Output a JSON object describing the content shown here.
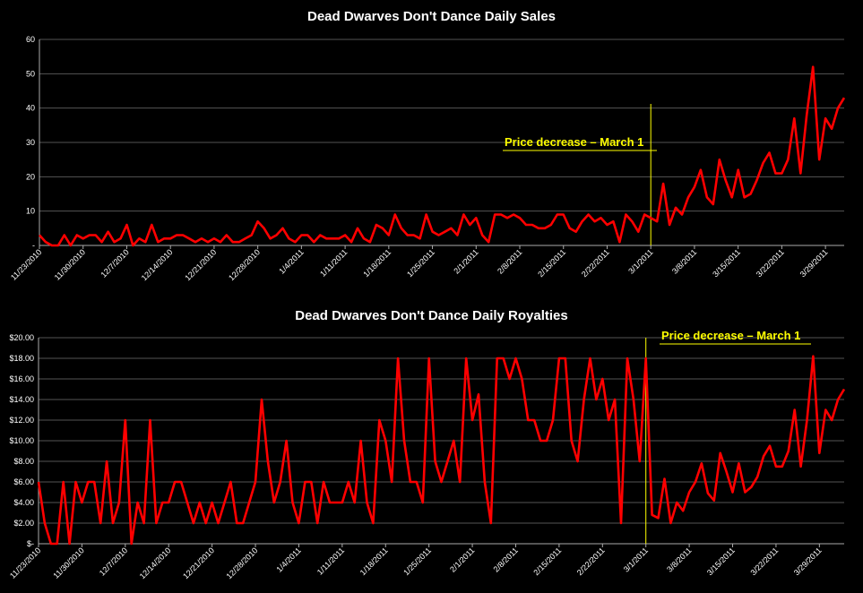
{
  "chart_data": [
    {
      "type": "line",
      "title": "Dead Dwarves Don't Dance Daily Sales",
      "x_tick_labels": [
        "11/23/2010",
        "11/30/2010",
        "12/7/2010",
        "12/14/2010",
        "12/21/2010",
        "12/28/2010",
        "1/4/2011",
        "1/11/2011",
        "1/18/2011",
        "1/25/2011",
        "2/1/2011",
        "2/8/2011",
        "2/15/2011",
        "2/22/2011",
        "3/1/2011",
        "3/8/2011",
        "3/15/2011",
        "3/22/2011",
        "3/29/2011"
      ],
      "y_tick_labels": [
        "-",
        "10",
        "20",
        "30",
        "40",
        "50",
        "60"
      ],
      "ylim": [
        0,
        60
      ],
      "grid": true,
      "series_color": "#ff0000",
      "annotation": {
        "text": "Price decrease – March 1",
        "x_index": 98,
        "color": "#ffff00"
      },
      "values": [
        3,
        1,
        0,
        0,
        3,
        0,
        3,
        2,
        3,
        3,
        1,
        4,
        1,
        2,
        6,
        0,
        2,
        1,
        6,
        1,
        2,
        2,
        3,
        3,
        2,
        1,
        2,
        1,
        2,
        1,
        3,
        1,
        1,
        2,
        3,
        7,
        5,
        2,
        3,
        5,
        2,
        1,
        3,
        3,
        1,
        3,
        2,
        2,
        2,
        3,
        1,
        5,
        2,
        1,
        6,
        5,
        3,
        9,
        5,
        3,
        3,
        2,
        9,
        4,
        3,
        4,
        5,
        3,
        9,
        6,
        8,
        3,
        1,
        9,
        9,
        8,
        9,
        8,
        6,
        6,
        5,
        5,
        6,
        9,
        9,
        5,
        4,
        7,
        9,
        7,
        8,
        6,
        7,
        1,
        9,
        7,
        4,
        9,
        8,
        7,
        18,
        6,
        11,
        9,
        14,
        17,
        22,
        14,
        12,
        25,
        19,
        14,
        22,
        14,
        15,
        19,
        24,
        27,
        21,
        21,
        25,
        37,
        21,
        38,
        52,
        25,
        37,
        34,
        40,
        43
      ]
    },
    {
      "type": "line",
      "title": "Dead Dwarves Don't Dance Daily Royalties",
      "x_tick_labels": [
        "11/23/2010",
        "11/30/2010",
        "12/7/2010",
        "12/14/2010",
        "12/21/2010",
        "12/28/2010",
        "1/4/2011",
        "1/11/2011",
        "1/18/2011",
        "1/25/2011",
        "2/1/2011",
        "2/8/2011",
        "2/15/2011",
        "2/22/2011",
        "3/1/2011",
        "3/8/2011",
        "3/15/2011",
        "3/22/2011",
        "3/29/2011"
      ],
      "y_tick_labels": [
        "$-",
        "$2.00",
        "$4.00",
        "$6.00",
        "$8.00",
        "$10.00",
        "$12.00",
        "$14.00",
        "$16.00",
        "$18.00",
        "$20.00"
      ],
      "ylim": [
        0,
        20
      ],
      "grid": true,
      "series_color": "#ff0000",
      "annotation": {
        "text": "Price decrease – March 1",
        "x_index": 98,
        "color": "#ffff00"
      },
      "values": [
        6,
        2,
        0,
        0,
        6,
        0,
        6,
        4,
        6,
        6,
        2,
        8,
        2,
        4,
        12,
        0,
        4,
        2,
        12,
        2,
        4,
        4,
        6,
        6,
        4,
        2,
        4,
        2,
        4,
        2,
        4,
        6,
        2,
        2,
        4,
        6,
        14,
        8,
        4,
        6,
        10,
        4,
        2,
        6,
        6,
        2,
        6,
        4,
        4,
        4,
        6,
        4,
        10,
        4,
        2,
        12,
        10,
        6,
        18,
        10,
        6,
        6,
        4,
        18,
        8,
        6,
        8,
        10,
        6,
        18,
        12,
        14.5,
        6,
        2,
        18,
        18,
        16,
        18,
        16,
        12,
        12,
        10,
        10,
        12,
        18,
        18,
        10,
        8,
        14,
        18,
        14,
        16,
        12,
        14,
        2,
        18,
        14,
        8,
        18,
        2.8,
        2.5,
        6.3,
        2,
        4,
        3.2,
        5,
        6,
        7.8,
        4.9,
        4.2,
        8.8,
        7,
        5,
        7.8,
        5,
        5.5,
        6.5,
        8.5,
        9.5,
        7.5,
        7.5,
        9,
        13,
        7.5,
        12,
        18.2,
        8.8,
        13,
        12,
        14,
        15
      ]
    }
  ]
}
